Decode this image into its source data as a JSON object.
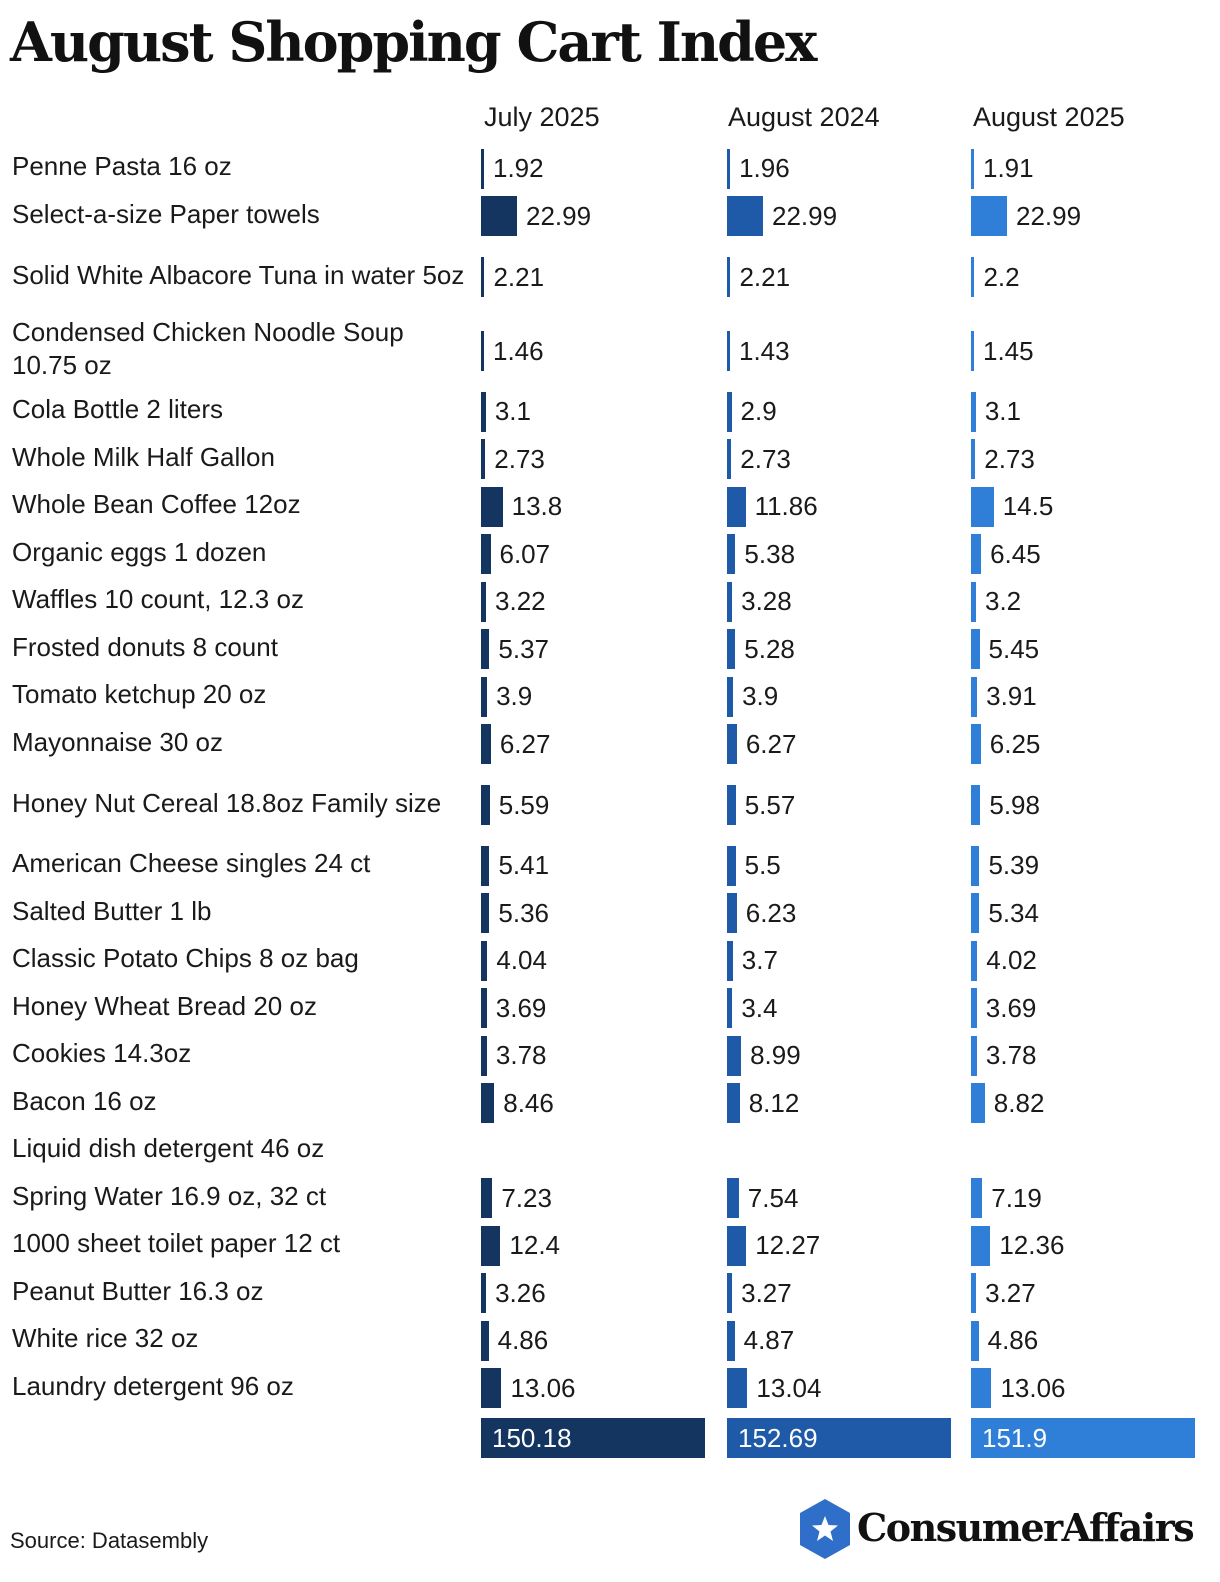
{
  "title": "August Shopping Cart Index",
  "source": "Source: Datasembly",
  "brand": "ConsumerAffairs",
  "colors": {
    "july_2025": "#13355f",
    "august_2024": "#1f5aa8",
    "august_2025": "#2f7fd9"
  },
  "chart_data": {
    "type": "bar",
    "title": "August Shopping Cart Index",
    "series_names": [
      "July 2025",
      "August 2024",
      "August 2025"
    ],
    "categories": [
      "Penne Pasta 16 oz",
      "Select-a-size Paper towels",
      "Solid White Albacore Tuna in water 5oz",
      "Condensed Chicken Noodle Soup 10.75 oz",
      "Cola Bottle 2 liters",
      "Whole Milk Half Gallon",
      "Whole Bean Coffee 12oz",
      "Organic eggs 1 dozen",
      "Waffles 10 count, 12.3 oz",
      "Frosted donuts 8 count",
      "Tomato ketchup 20 oz",
      "Mayonnaise 30 oz",
      "Honey Nut Cereal 18.8oz Family size",
      "American Cheese singles 24 ct",
      "Salted Butter 1 lb",
      "Classic Potato Chips 8 oz bag",
      "Honey Wheat Bread 20 oz",
      "Cookies 14.3oz",
      "Bacon 16 oz",
      "Liquid dish detergent 46 oz",
      "Spring Water 16.9 oz, 32 ct",
      "1000 sheet toilet paper 12 ct",
      "Peanut Butter 16.3 oz",
      "White rice 32 oz",
      "Laundry detergent 96 oz"
    ],
    "series": [
      {
        "name": "July 2025",
        "values": [
          "1.92",
          "22.99",
          "2.21",
          "1.46",
          "3.1",
          "2.73",
          "13.8",
          "6.07",
          "3.22",
          "5.37",
          "3.9",
          "6.27",
          "5.59",
          "5.41",
          "5.36",
          "4.04",
          "3.69",
          "3.78",
          "8.46",
          null,
          "7.23",
          "12.4",
          "3.26",
          "4.86",
          "13.06"
        ],
        "total": "150.18"
      },
      {
        "name": "August 2024",
        "values": [
          "1.96",
          "22.99",
          "2.21",
          "1.43",
          "2.9",
          "2.73",
          "11.86",
          "5.38",
          "3.28",
          "5.28",
          "3.9",
          "6.27",
          "5.57",
          "5.5",
          "6.23",
          "3.7",
          "3.4",
          "8.99",
          "8.12",
          null,
          "7.54",
          "12.27",
          "3.27",
          "4.87",
          "13.04"
        ],
        "total": "152.69"
      },
      {
        "name": "August 2025",
        "values": [
          "1.91",
          "22.99",
          "2.2",
          "1.45",
          "3.1",
          "2.73",
          "14.5",
          "6.45",
          "3.2",
          "5.45",
          "3.91",
          "6.25",
          "5.98",
          "5.39",
          "5.34",
          "4.02",
          "3.69",
          "3.78",
          "8.82",
          null,
          "7.19",
          "12.36",
          "3.27",
          "4.86",
          "13.06"
        ],
        "total": "151.9"
      }
    ]
  }
}
